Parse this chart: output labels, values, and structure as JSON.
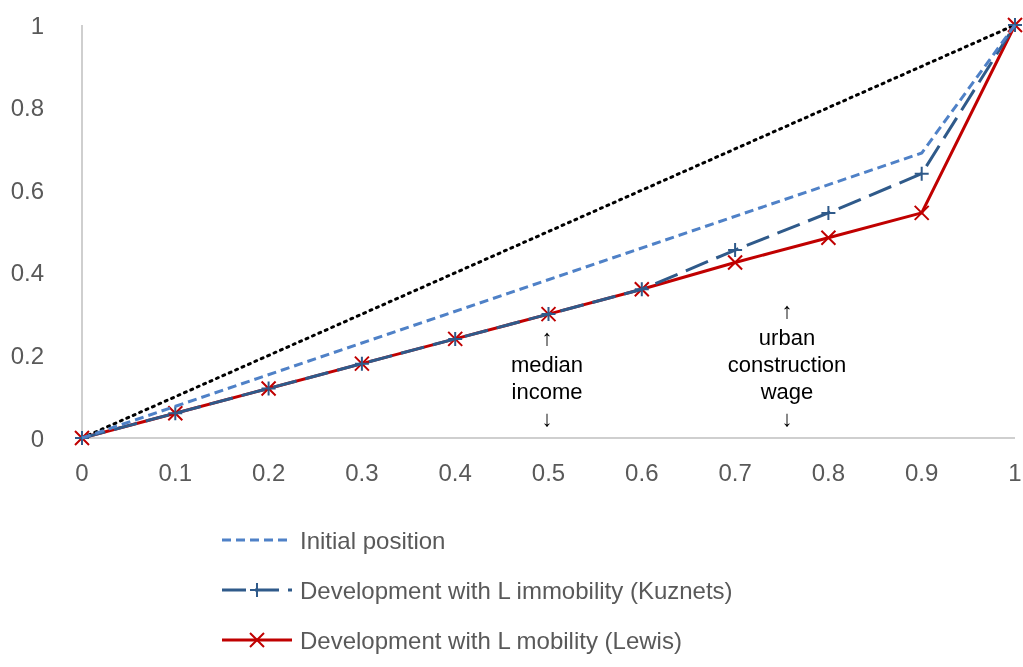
{
  "chart_data": {
    "type": "line",
    "xlim": [
      0,
      1
    ],
    "xticks": [
      0,
      0.1,
      0.2,
      0.3,
      0.4,
      0.5,
      0.6,
      0.7,
      0.8,
      0.9,
      1
    ],
    "ylim": [
      0,
      1
    ],
    "yticks": [
      0,
      0.2,
      0.4,
      0.6,
      0.8,
      1
    ],
    "grid": false,
    "legend": "bottom",
    "series": [
      {
        "name": "Initial position",
        "color": "#4f81c7",
        "line_style": "dashed",
        "marker": "none",
        "x": [
          0,
          0.9,
          1
        ],
        "values": [
          0,
          0.69,
          1
        ]
      },
      {
        "name": "Development with L immobility (Kuznets)",
        "color": "#2f5a8a",
        "line_style": "dashed",
        "marker": "cross",
        "x": [
          0,
          0.1,
          0.2,
          0.3,
          0.4,
          0.5,
          0.6,
          0.7,
          0.8,
          0.9,
          1
        ],
        "values": [
          0,
          0.06,
          0.12,
          0.18,
          0.24,
          0.3,
          0.36,
          0.455,
          0.545,
          0.64,
          1
        ]
      },
      {
        "name": "Development with L mobility (Lewis)",
        "color": "#c00000",
        "line_style": "solid",
        "marker": "x",
        "x": [
          0,
          0.1,
          0.2,
          0.3,
          0.4,
          0.5,
          0.6,
          0.7,
          0.8,
          0.9,
          1
        ],
        "values": [
          0,
          0.06,
          0.12,
          0.18,
          0.24,
          0.3,
          0.36,
          0.425,
          0.485,
          0.545,
          1
        ]
      },
      {
        "color": "#000000",
        "line_style": "dotted",
        "marker": "none",
        "x": [
          0,
          1
        ],
        "values": [
          0,
          1
        ]
      }
    ],
    "annotations": [
      "↑\nmedian\nincome\n↓",
      "↑\nurban\nconstruction\nwage\n↓"
    ]
  }
}
